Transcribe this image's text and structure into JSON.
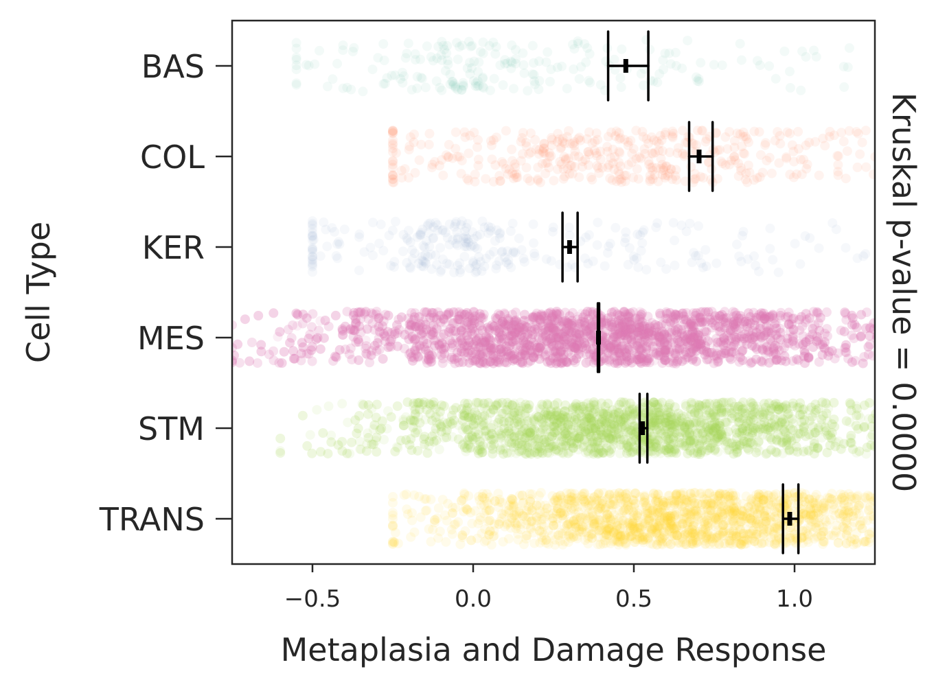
{
  "chart_data": {
    "type": "scatter",
    "subtype": "strip plot with mean and 95% CI error bars",
    "title": "",
    "xlabel": "Metaplasia and Damage Response",
    "ylabel": "Cell Type",
    "right_label": "Kruskal p-value = 0.0000",
    "xlim": [
      -0.75,
      1.25
    ],
    "xticks": [
      -0.5,
      0.0,
      0.5,
      1.0
    ],
    "xtick_labels": [
      "−0.5",
      "0.0",
      "0.5",
      "1.0"
    ],
    "grid": false,
    "categories": [
      "BAS",
      "COL",
      "KER",
      "MES",
      "STM",
      "TRANS"
    ],
    "series": [
      {
        "name": "BAS",
        "color": "#66c2a5",
        "mean": 0.475,
        "ci": [
          0.42,
          0.545
        ],
        "approx_range": [
          -0.55,
          1.25
        ]
      },
      {
        "name": "COL",
        "color": "#fc8d62",
        "mean": 0.703,
        "ci": [
          0.672,
          0.745
        ],
        "approx_range": [
          -0.25,
          1.25
        ]
      },
      {
        "name": "KER",
        "color": "#8da0cb",
        "mean": 0.3,
        "ci": [
          0.278,
          0.325
        ],
        "approx_range": [
          -0.5,
          1.25
        ]
      },
      {
        "name": "MES",
        "color": "#e078b8",
        "mean": 0.39,
        "ci": [
          0.388,
          0.392
        ],
        "approx_range": [
          -0.75,
          1.25
        ]
      },
      {
        "name": "STM",
        "color": "#a6d854",
        "mean": 0.527,
        "ci": [
          0.518,
          0.542
        ],
        "approx_range": [
          -0.6,
          1.25
        ]
      },
      {
        "name": "TRANS",
        "color": "#ffd92f",
        "mean": 0.985,
        "ci": [
          0.964,
          1.012
        ],
        "approx_range": [
          -0.25,
          1.25
        ]
      }
    ]
  }
}
